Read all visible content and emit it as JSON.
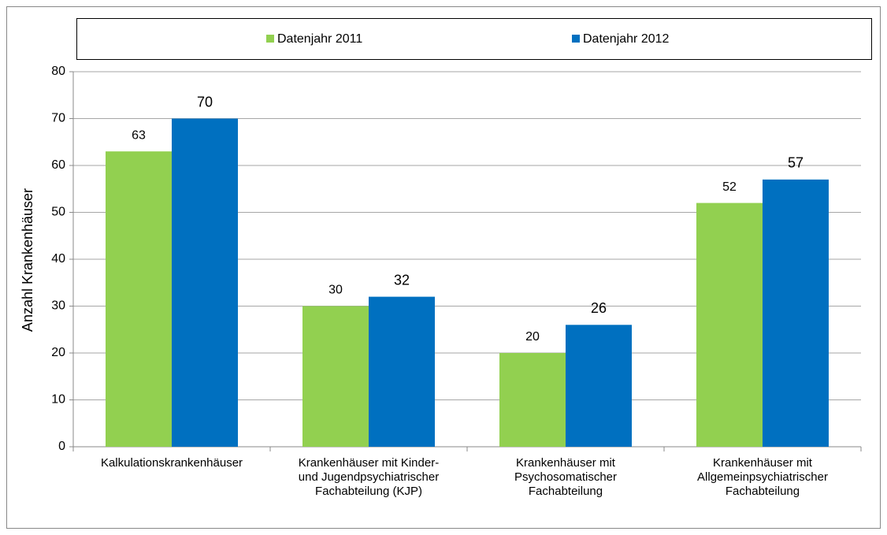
{
  "chart_data": {
    "type": "bar",
    "y_label": "Anzahl Krankenhäuser",
    "categories": [
      "Kalkulationskrankenhäuser",
      "Krankenhäuser mit Kinder-\nund Jugendpsychiatrischer\nFachabteilung (KJP)",
      "Krankenhäuser mit\nPsychosomatischer\nFachabteilung",
      "Krankenhäuser mit\nAllgemeinpsychiatrischer\nFachabteilung"
    ],
    "series": [
      {
        "name": "Datenjahr 2011",
        "color": "#92d050",
        "values": [
          63,
          30,
          20,
          52
        ]
      },
      {
        "name": "Datenjahr 2012",
        "color": "#0070c0",
        "values": [
          70,
          32,
          26,
          57
        ]
      }
    ],
    "ylim": [
      0,
      80
    ],
    "yticks": [
      0,
      10,
      20,
      30,
      40,
      50,
      60,
      70,
      80
    ],
    "grid": true,
    "legend": "top"
  }
}
